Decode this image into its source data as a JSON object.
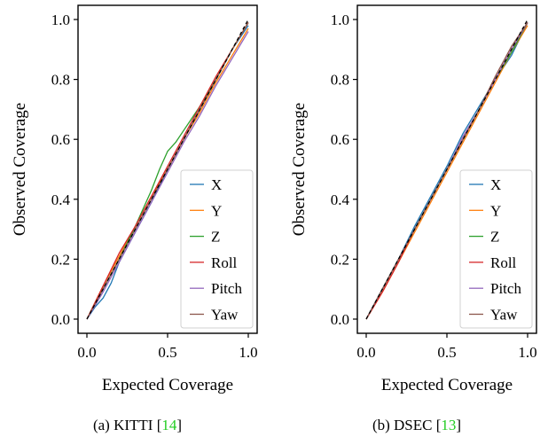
{
  "chart_data": [
    {
      "type": "line",
      "xlabel": "Expected Coverage",
      "ylabel": "Observed Coverage",
      "xlim": [
        0.0,
        1.0
      ],
      "ylim": [
        0.0,
        1.0
      ],
      "xticks": [
        "0.0",
        "0.5",
        "1.0"
      ],
      "yticks": [
        "0.0",
        "0.2",
        "0.4",
        "0.6",
        "0.8",
        "1.0"
      ],
      "caption": {
        "prefix": "(a) KITTI [",
        "ref": "14",
        "suffix": "]"
      },
      "legend_position": "lower right",
      "reference_line": "dashed black diagonal",
      "series": [
        {
          "name": "X",
          "color": "#1f77b4",
          "x": [
            0,
            0.05,
            0.1,
            0.15,
            0.2,
            0.3,
            0.4,
            0.5,
            0.6,
            0.7,
            0.8,
            0.9,
            1.0
          ],
          "y": [
            0,
            0.04,
            0.07,
            0.12,
            0.19,
            0.29,
            0.39,
            0.5,
            0.6,
            0.7,
            0.8,
            0.9,
            0.98
          ]
        },
        {
          "name": "Y",
          "color": "#ff7f0e",
          "x": [
            0,
            0.1,
            0.2,
            0.3,
            0.4,
            0.5,
            0.6,
            0.7,
            0.8,
            0.9,
            1.0
          ],
          "y": [
            0,
            0.11,
            0.21,
            0.31,
            0.41,
            0.5,
            0.6,
            0.69,
            0.79,
            0.88,
            0.97
          ]
        },
        {
          "name": "Z",
          "color": "#2ca02c",
          "x": [
            0,
            0.1,
            0.2,
            0.3,
            0.4,
            0.45,
            0.5,
            0.55,
            0.6,
            0.7,
            0.8,
            0.9,
            1.0
          ],
          "y": [
            0,
            0.1,
            0.2,
            0.31,
            0.43,
            0.5,
            0.56,
            0.59,
            0.63,
            0.71,
            0.8,
            0.9,
            0.99
          ]
        },
        {
          "name": "Roll",
          "color": "#d62728",
          "x": [
            0,
            0.1,
            0.2,
            0.3,
            0.4,
            0.5,
            0.6,
            0.7,
            0.8,
            0.9,
            1.0
          ],
          "y": [
            0,
            0.11,
            0.22,
            0.31,
            0.41,
            0.51,
            0.61,
            0.71,
            0.81,
            0.9,
            0.99
          ]
        },
        {
          "name": "Pitch",
          "color": "#9467bd",
          "x": [
            0,
            0.1,
            0.2,
            0.3,
            0.4,
            0.5,
            0.6,
            0.7,
            0.8,
            0.9,
            1.0
          ],
          "y": [
            0,
            0.09,
            0.19,
            0.29,
            0.39,
            0.49,
            0.59,
            0.68,
            0.78,
            0.87,
            0.96
          ]
        },
        {
          "name": "Yaw",
          "color": "#8c564b",
          "x": [
            0,
            0.1,
            0.2,
            0.3,
            0.4,
            0.5,
            0.6,
            0.7,
            0.8,
            0.9,
            1.0
          ],
          "y": [
            0,
            0.1,
            0.2,
            0.3,
            0.4,
            0.5,
            0.6,
            0.7,
            0.8,
            0.9,
            0.99
          ]
        }
      ]
    },
    {
      "type": "line",
      "xlabel": "Expected Coverage",
      "ylabel": "Observed Coverage",
      "xlim": [
        0.0,
        1.0
      ],
      "ylim": [
        0.0,
        1.0
      ],
      "xticks": [
        "0.0",
        "0.5",
        "1.0"
      ],
      "yticks": [
        "0.0",
        "0.2",
        "0.4",
        "0.6",
        "0.8",
        "1.0"
      ],
      "caption": {
        "prefix": "(b) DSEC [",
        "ref": "13",
        "suffix": "]"
      },
      "legend_position": "lower right",
      "reference_line": "dashed black diagonal",
      "series": [
        {
          "name": "X",
          "color": "#1f77b4",
          "x": [
            0,
            0.1,
            0.2,
            0.3,
            0.4,
            0.5,
            0.6,
            0.7,
            0.8,
            0.9,
            1.0
          ],
          "y": [
            0,
            0.1,
            0.2,
            0.31,
            0.41,
            0.51,
            0.62,
            0.71,
            0.8,
            0.88,
            0.99
          ]
        },
        {
          "name": "Y",
          "color": "#ff7f0e",
          "x": [
            0,
            0.1,
            0.2,
            0.3,
            0.4,
            0.5,
            0.6,
            0.7,
            0.8,
            0.9,
            1.0
          ],
          "y": [
            0,
            0.09,
            0.19,
            0.29,
            0.39,
            0.49,
            0.59,
            0.69,
            0.79,
            0.89,
            0.98
          ]
        },
        {
          "name": "Z",
          "color": "#2ca02c",
          "x": [
            0,
            0.1,
            0.2,
            0.3,
            0.4,
            0.5,
            0.6,
            0.7,
            0.8,
            0.9,
            1.0
          ],
          "y": [
            0,
            0.1,
            0.2,
            0.3,
            0.4,
            0.5,
            0.6,
            0.7,
            0.8,
            0.89,
            0.99
          ]
        },
        {
          "name": "Roll",
          "color": "#d62728",
          "x": [
            0,
            0.1,
            0.2,
            0.3,
            0.4,
            0.5,
            0.6,
            0.7,
            0.8,
            0.9,
            1.0
          ],
          "y": [
            0,
            0.09,
            0.19,
            0.3,
            0.4,
            0.5,
            0.6,
            0.7,
            0.8,
            0.9,
            0.99
          ]
        },
        {
          "name": "Pitch",
          "color": "#9467bd",
          "x": [
            0,
            0.1,
            0.2,
            0.3,
            0.4,
            0.5,
            0.6,
            0.7,
            0.8,
            0.9,
            1.0
          ],
          "y": [
            0,
            0.1,
            0.2,
            0.3,
            0.4,
            0.5,
            0.61,
            0.7,
            0.8,
            0.9,
            0.99
          ]
        },
        {
          "name": "Yaw",
          "color": "#8c564b",
          "x": [
            0,
            0.1,
            0.2,
            0.3,
            0.4,
            0.5,
            0.6,
            0.7,
            0.8,
            0.9,
            1.0
          ],
          "y": [
            0,
            0.1,
            0.2,
            0.3,
            0.4,
            0.5,
            0.6,
            0.7,
            0.81,
            0.91,
            0.99
          ]
        }
      ]
    }
  ]
}
